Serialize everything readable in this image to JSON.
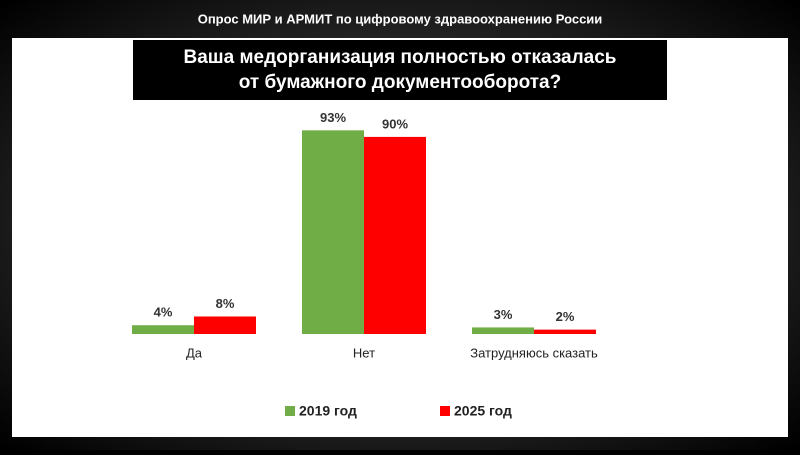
{
  "chart_data": {
    "type": "bar",
    "supertitle": "Опрос МИР и АРМИТ по цифровому здравоохранению России",
    "title": [
      "Ваша медорганизация полностью отказалась",
      "от бумажного документооборота?"
    ],
    "categories": [
      "Да",
      "Нет",
      "Затрудняюсь сказать"
    ],
    "series": [
      {
        "name": "2019 год",
        "color": "#70ad47",
        "values": [
          4,
          93,
          3
        ],
        "value_labels": [
          "4%",
          "93%",
          "3%"
        ]
      },
      {
        "name": "2025 год",
        "color": "#ff0000",
        "values": [
          8,
          90,
          2
        ],
        "value_labels": [
          "8%",
          "90%",
          "2%"
        ]
      }
    ],
    "legend": "bottom"
  }
}
